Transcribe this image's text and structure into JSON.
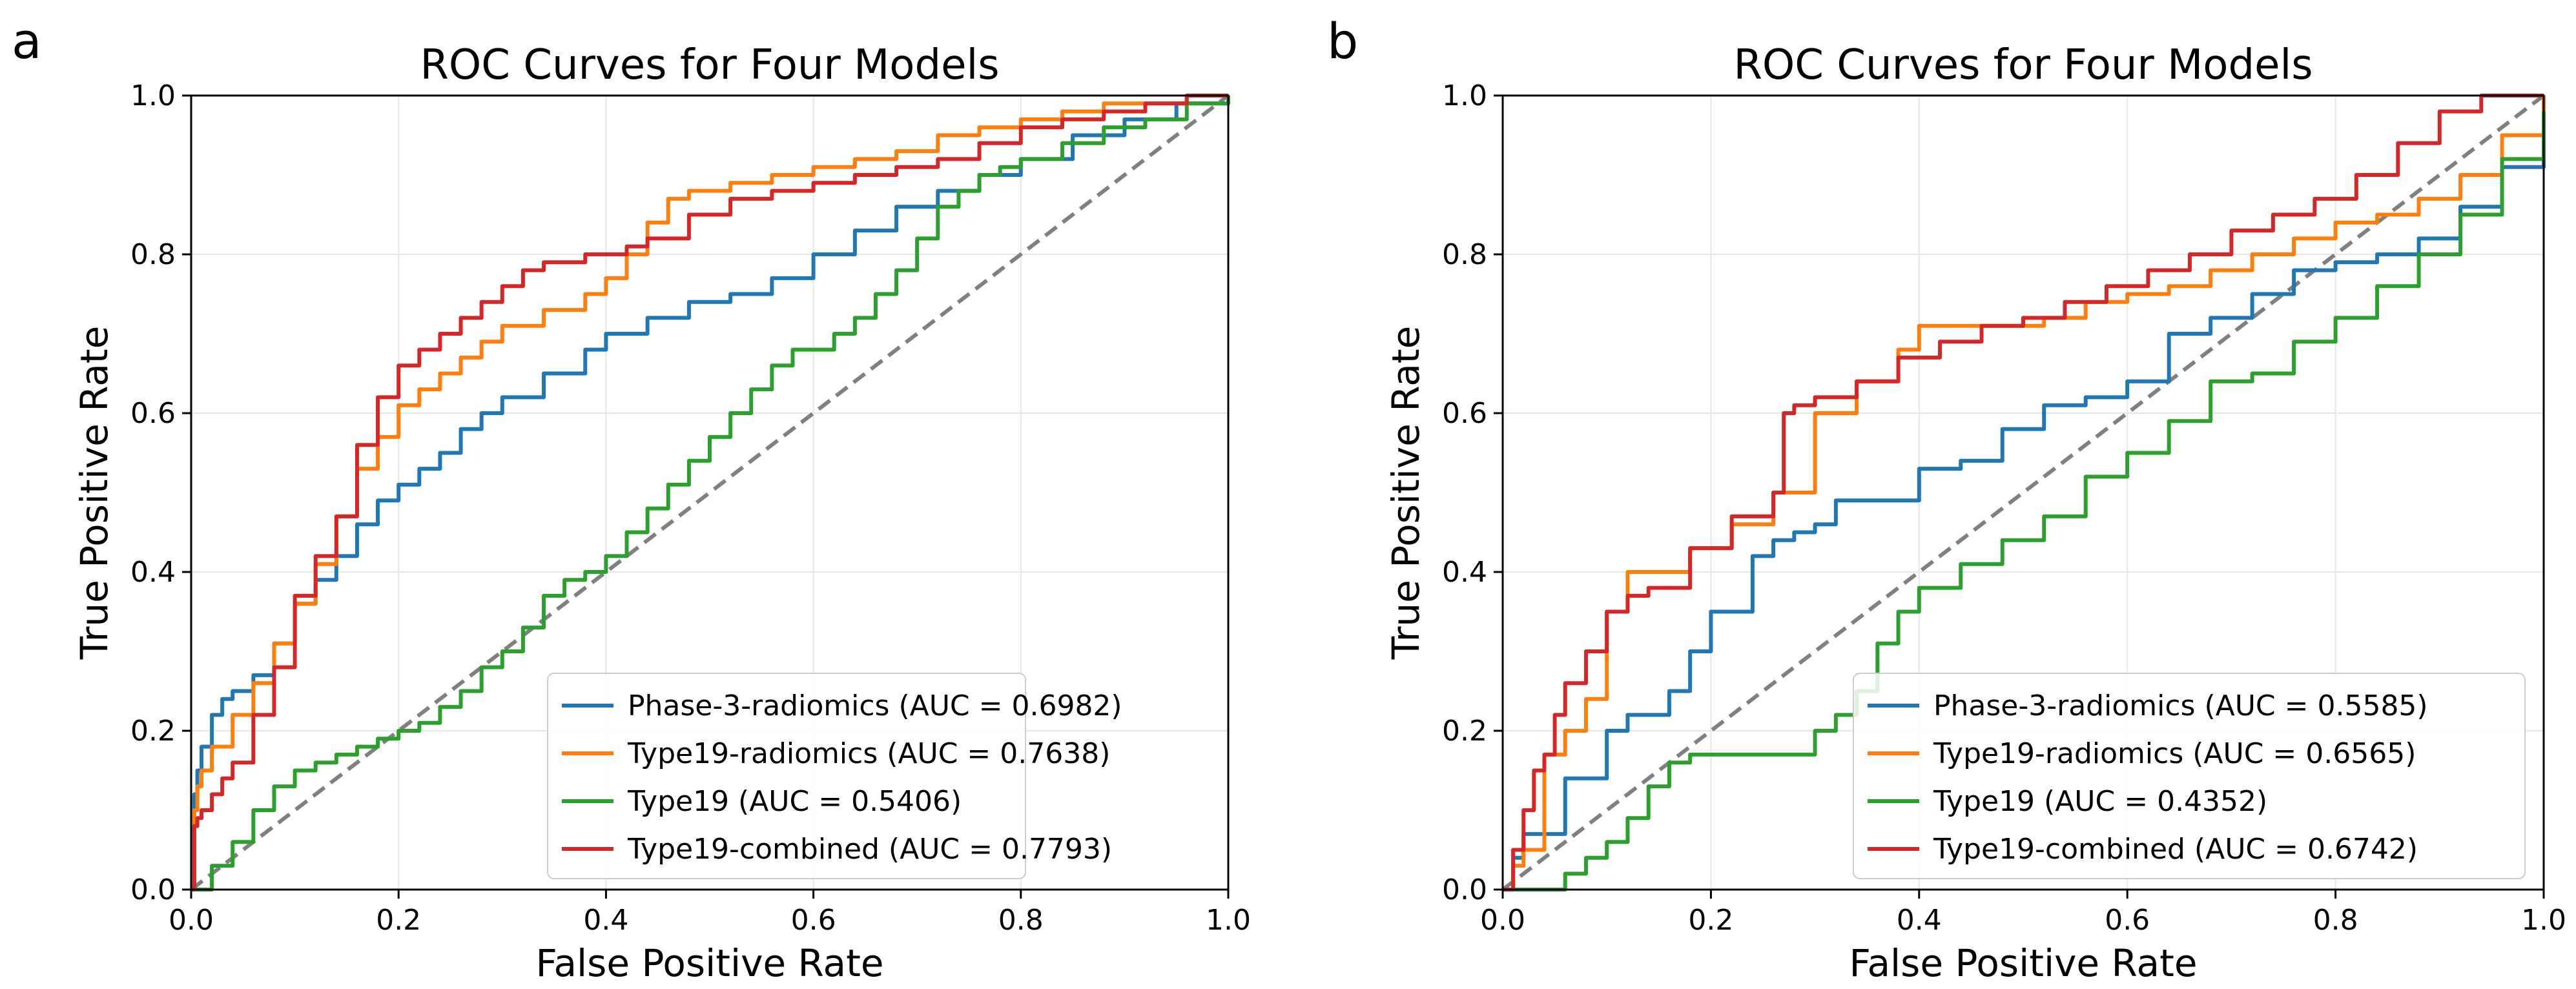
{
  "chart_data": [
    {
      "type": "line",
      "panel": "a",
      "title": "ROC Curves for Four Models",
      "xlabel": "False Positive Rate",
      "ylabel": "True Positive Rate",
      "xlim": [
        0,
        1
      ],
      "ylim": [
        0,
        1
      ],
      "xticks": [
        "0.0",
        "0.2",
        "0.4",
        "0.6",
        "0.8",
        "1.0"
      ],
      "yticks": [
        "0.0",
        "0.2",
        "0.4",
        "0.6",
        "0.8",
        "1.0"
      ],
      "grid": true,
      "legend_position": "lower-right",
      "reference_line": {
        "x": [
          0,
          1
        ],
        "y": [
          0,
          1
        ],
        "style": "dashed",
        "color": "#808080"
      },
      "series": [
        {
          "name": "Phase-3-radiomics (AUC = 0.6982)",
          "color": "#1f77b4",
          "x": [
            0,
            0.003,
            0.006,
            0.01,
            0.02,
            0.03,
            0.04,
            0.06,
            0.08,
            0.1,
            0.12,
            0.14,
            0.16,
            0.18,
            0.2,
            0.22,
            0.24,
            0.26,
            0.28,
            0.3,
            0.34,
            0.38,
            0.4,
            0.44,
            0.48,
            0.52,
            0.56,
            0.6,
            0.64,
            0.68,
            0.72,
            0.76,
            0.8,
            0.85,
            0.9,
            0.95,
            1.0
          ],
          "y": [
            0,
            0.12,
            0.15,
            0.18,
            0.22,
            0.24,
            0.25,
            0.27,
            0.31,
            0.36,
            0.39,
            0.42,
            0.46,
            0.49,
            0.51,
            0.53,
            0.55,
            0.58,
            0.6,
            0.62,
            0.65,
            0.68,
            0.7,
            0.72,
            0.74,
            0.75,
            0.77,
            0.8,
            0.83,
            0.86,
            0.88,
            0.9,
            0.92,
            0.95,
            0.97,
            0.99,
            1.0
          ]
        },
        {
          "name": "Type19-radiomics (AUC = 0.7638)",
          "color": "#ff7f0e",
          "x": [
            0,
            0.003,
            0.006,
            0.01,
            0.02,
            0.04,
            0.06,
            0.08,
            0.1,
            0.12,
            0.14,
            0.16,
            0.18,
            0.2,
            0.22,
            0.24,
            0.26,
            0.28,
            0.3,
            0.34,
            0.38,
            0.4,
            0.42,
            0.44,
            0.46,
            0.48,
            0.52,
            0.56,
            0.6,
            0.64,
            0.68,
            0.72,
            0.76,
            0.8,
            0.84,
            0.88,
            0.92,
            0.96,
            1.0
          ],
          "y": [
            0,
            0.1,
            0.13,
            0.15,
            0.18,
            0.22,
            0.26,
            0.31,
            0.36,
            0.41,
            0.47,
            0.53,
            0.57,
            0.61,
            0.63,
            0.65,
            0.67,
            0.69,
            0.71,
            0.73,
            0.75,
            0.77,
            0.8,
            0.84,
            0.87,
            0.88,
            0.89,
            0.9,
            0.91,
            0.92,
            0.93,
            0.95,
            0.96,
            0.97,
            0.98,
            0.99,
            0.99,
            1.0,
            1.0
          ]
        },
        {
          "name": "Type19 (AUC = 0.5406)",
          "color": "#2ca02c",
          "x": [
            0,
            0.02,
            0.04,
            0.06,
            0.08,
            0.1,
            0.12,
            0.14,
            0.16,
            0.18,
            0.2,
            0.22,
            0.24,
            0.26,
            0.28,
            0.3,
            0.32,
            0.34,
            0.36,
            0.38,
            0.4,
            0.42,
            0.44,
            0.46,
            0.48,
            0.5,
            0.52,
            0.54,
            0.56,
            0.58,
            0.6,
            0.62,
            0.64,
            0.66,
            0.68,
            0.7,
            0.72,
            0.74,
            0.76,
            0.78,
            0.8,
            0.84,
            0.88,
            0.92,
            0.96,
            1.0
          ],
          "y": [
            0,
            0.03,
            0.06,
            0.1,
            0.13,
            0.15,
            0.16,
            0.17,
            0.18,
            0.19,
            0.2,
            0.21,
            0.23,
            0.25,
            0.28,
            0.3,
            0.33,
            0.37,
            0.39,
            0.4,
            0.42,
            0.45,
            0.48,
            0.51,
            0.54,
            0.57,
            0.6,
            0.63,
            0.66,
            0.68,
            0.68,
            0.7,
            0.72,
            0.75,
            0.78,
            0.82,
            0.86,
            0.88,
            0.9,
            0.91,
            0.92,
            0.94,
            0.96,
            0.97,
            0.99,
            1.0
          ]
        },
        {
          "name": "Type19-combined (AUC = 0.7793)",
          "color": "#d62728",
          "x": [
            0,
            0.003,
            0.006,
            0.01,
            0.02,
            0.03,
            0.04,
            0.06,
            0.08,
            0.1,
            0.12,
            0.14,
            0.16,
            0.18,
            0.2,
            0.22,
            0.24,
            0.26,
            0.28,
            0.3,
            0.32,
            0.34,
            0.38,
            0.4,
            0.42,
            0.44,
            0.48,
            0.52,
            0.56,
            0.6,
            0.64,
            0.68,
            0.72,
            0.76,
            0.8,
            0.84,
            0.88,
            0.92,
            0.96,
            1.0
          ],
          "y": [
            0,
            0.08,
            0.09,
            0.1,
            0.12,
            0.14,
            0.16,
            0.22,
            0.28,
            0.37,
            0.42,
            0.47,
            0.56,
            0.62,
            0.66,
            0.68,
            0.7,
            0.72,
            0.74,
            0.76,
            0.78,
            0.79,
            0.8,
            0.8,
            0.81,
            0.82,
            0.85,
            0.87,
            0.88,
            0.89,
            0.9,
            0.91,
            0.92,
            0.94,
            0.96,
            0.97,
            0.98,
            0.99,
            1.0,
            1.0
          ]
        }
      ]
    },
    {
      "type": "line",
      "panel": "b",
      "title": "ROC Curves for Four Models",
      "xlabel": "False Positive Rate",
      "ylabel": "True Positive Rate",
      "xlim": [
        0,
        1
      ],
      "ylim": [
        0,
        1
      ],
      "xticks": [
        "0.0",
        "0.2",
        "0.4",
        "0.6",
        "0.8",
        "1.0"
      ],
      "yticks": [
        "0.0",
        "0.2",
        "0.4",
        "0.6",
        "0.8",
        "1.0"
      ],
      "grid": true,
      "legend_position": "lower-right",
      "reference_line": {
        "x": [
          0,
          1
        ],
        "y": [
          0,
          1
        ],
        "style": "dashed",
        "color": "#808080"
      },
      "series": [
        {
          "name": "Phase-3-radiomics (AUC = 0.5585)",
          "color": "#1f77b4",
          "x": [
            0,
            0.01,
            0.02,
            0.05,
            0.06,
            0.1,
            0.12,
            0.14,
            0.16,
            0.18,
            0.2,
            0.22,
            0.24,
            0.26,
            0.28,
            0.3,
            0.32,
            0.36,
            0.4,
            0.44,
            0.48,
            0.52,
            0.56,
            0.6,
            0.64,
            0.68,
            0.72,
            0.76,
            0.8,
            0.84,
            0.88,
            0.92,
            0.96,
            1.0
          ],
          "y": [
            0,
            0.04,
            0.07,
            0.07,
            0.14,
            0.2,
            0.22,
            0.22,
            0.25,
            0.3,
            0.35,
            0.35,
            0.42,
            0.44,
            0.45,
            0.46,
            0.49,
            0.49,
            0.53,
            0.54,
            0.58,
            0.61,
            0.62,
            0.64,
            0.7,
            0.72,
            0.75,
            0.78,
            0.79,
            0.8,
            0.82,
            0.86,
            0.91,
            1.0
          ]
        },
        {
          "name": "Type19-radiomics (AUC = 0.6565)",
          "color": "#ff7f0e",
          "x": [
            0,
            0.01,
            0.02,
            0.04,
            0.06,
            0.08,
            0.1,
            0.12,
            0.14,
            0.18,
            0.22,
            0.26,
            0.28,
            0.3,
            0.34,
            0.38,
            0.4,
            0.44,
            0.48,
            0.52,
            0.56,
            0.6,
            0.64,
            0.68,
            0.72,
            0.76,
            0.8,
            0.84,
            0.88,
            0.92,
            0.96,
            1.0
          ],
          "y": [
            0,
            0.03,
            0.05,
            0.17,
            0.2,
            0.24,
            0.35,
            0.4,
            0.4,
            0.43,
            0.46,
            0.5,
            0.5,
            0.6,
            0.64,
            0.68,
            0.71,
            0.71,
            0.71,
            0.72,
            0.74,
            0.75,
            0.76,
            0.78,
            0.8,
            0.82,
            0.84,
            0.85,
            0.87,
            0.9,
            0.95,
            1.0
          ]
        },
        {
          "name": "Type19 (AUC = 0.4352)",
          "color": "#2ca02c",
          "x": [
            0,
            0.04,
            0.06,
            0.08,
            0.1,
            0.12,
            0.14,
            0.16,
            0.18,
            0.22,
            0.26,
            0.3,
            0.32,
            0.34,
            0.36,
            0.38,
            0.4,
            0.44,
            0.48,
            0.52,
            0.56,
            0.6,
            0.64,
            0.68,
            0.72,
            0.76,
            0.8,
            0.84,
            0.88,
            0.92,
            0.96,
            1.0
          ],
          "y": [
            0,
            0,
            0.02,
            0.04,
            0.06,
            0.09,
            0.13,
            0.16,
            0.17,
            0.17,
            0.17,
            0.2,
            0.22,
            0.25,
            0.31,
            0.35,
            0.38,
            0.41,
            0.44,
            0.47,
            0.52,
            0.55,
            0.59,
            0.64,
            0.65,
            0.69,
            0.72,
            0.76,
            0.8,
            0.85,
            0.92,
            0.98
          ]
        },
        {
          "name": "Type19-combined (AUC = 0.6742)",
          "color": "#d62728",
          "x": [
            0,
            0.01,
            0.02,
            0.03,
            0.04,
            0.05,
            0.06,
            0.08,
            0.1,
            0.12,
            0.14,
            0.18,
            0.22,
            0.26,
            0.27,
            0.28,
            0.3,
            0.34,
            0.38,
            0.42,
            0.46,
            0.5,
            0.54,
            0.58,
            0.62,
            0.66,
            0.7,
            0.74,
            0.78,
            0.82,
            0.86,
            0.9,
            0.94,
            1.0
          ],
          "y": [
            0,
            0.05,
            0.1,
            0.15,
            0.17,
            0.22,
            0.26,
            0.3,
            0.35,
            0.37,
            0.38,
            0.43,
            0.47,
            0.5,
            0.6,
            0.61,
            0.62,
            0.64,
            0.67,
            0.69,
            0.71,
            0.72,
            0.74,
            0.76,
            0.78,
            0.8,
            0.83,
            0.85,
            0.87,
            0.9,
            0.94,
            0.98,
            1.0,
            1.0
          ]
        }
      ]
    }
  ]
}
